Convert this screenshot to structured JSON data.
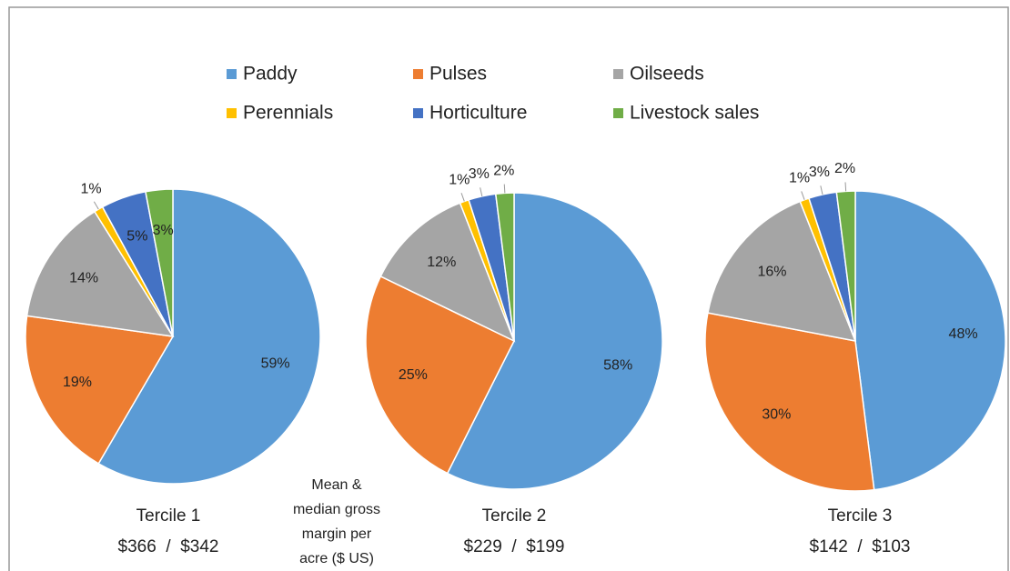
{
  "legend": {
    "categories": [
      "Paddy",
      "Pulses",
      "Oilseeds",
      "Perennials",
      "Horticulture",
      "Livestock sales"
    ],
    "colors": [
      "#5b9bd5",
      "#ed7d31",
      "#a5a5a5",
      "#ffc000",
      "#4472c4",
      "#70ad47"
    ]
  },
  "annotation": [
    "Mean &",
    "median gross",
    "margin per",
    "acre ($ US)"
  ],
  "chart_data": [
    {
      "type": "pie",
      "title": "Tercile 1",
      "subtitle": "$366  /  $342",
      "values": [
        59,
        19,
        14,
        1,
        5,
        3
      ],
      "value_labels": [
        "59%",
        "19%",
        "14%",
        "1%",
        "5%",
        "3%"
      ]
    },
    {
      "type": "pie",
      "title": "Tercile 2",
      "subtitle": "$229  /  $199",
      "values": [
        58,
        25,
        12,
        1,
        3,
        2
      ],
      "value_labels": [
        "58%",
        "25%",
        "12%",
        "1%",
        "3%",
        "2%"
      ]
    },
    {
      "type": "pie",
      "title": "Tercile 3",
      "subtitle": "$142  /  $103",
      "values": [
        48,
        30,
        16,
        1,
        3,
        2
      ],
      "value_labels": [
        "48%",
        "30%",
        "16%",
        "1%",
        "3%",
        "2%"
      ]
    }
  ]
}
